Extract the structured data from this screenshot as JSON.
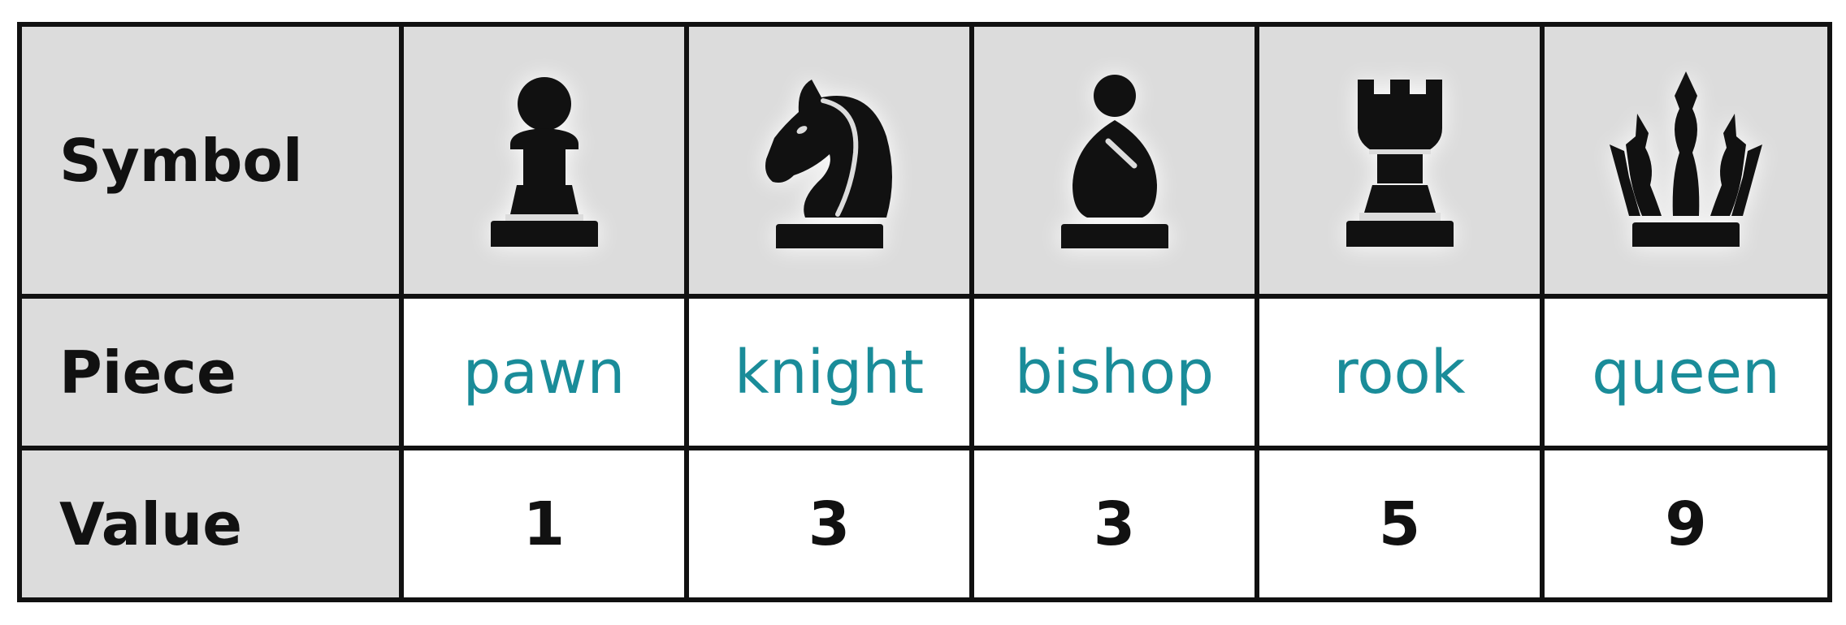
{
  "table": {
    "row_headers": {
      "symbol": "Symbol",
      "piece": "Piece",
      "value": "Value"
    },
    "pieces": [
      {
        "name": "pawn",
        "value": "1",
        "icon": "chess-pawn-icon"
      },
      {
        "name": "knight",
        "value": "3",
        "icon": "chess-knight-icon"
      },
      {
        "name": "bishop",
        "value": "3",
        "icon": "chess-bishop-icon"
      },
      {
        "name": "rook",
        "value": "5",
        "icon": "chess-rook-icon"
      },
      {
        "name": "queen",
        "value": "9",
        "icon": "chess-queen-icon"
      }
    ],
    "colors": {
      "header_bg": "#dcdcdc",
      "piece_text": "#1a8c99",
      "border": "#111111",
      "icon_fill": "#111111"
    }
  }
}
